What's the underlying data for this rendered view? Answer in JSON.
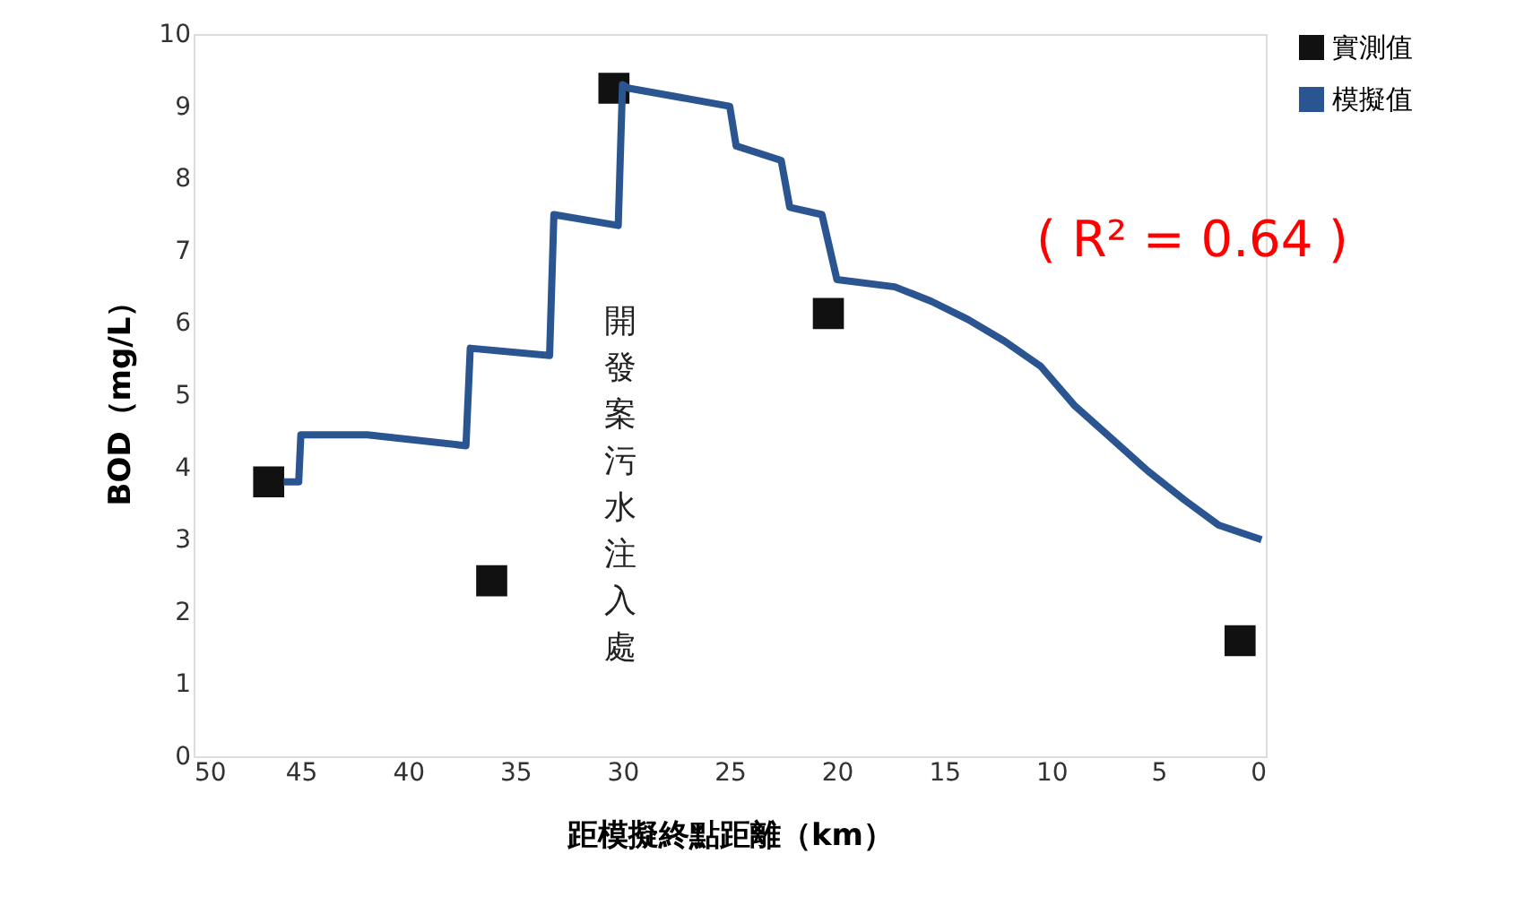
{
  "chart_data": {
    "type": "line",
    "xlabel": "距模擬終點距離（km）",
    "ylabel": "BOD（mg/L）",
    "xlim": [
      50,
      0
    ],
    "xticks": [
      50,
      45,
      40,
      35,
      30,
      25,
      20,
      15,
      10,
      5,
      0
    ],
    "ylim": [
      0,
      10
    ],
    "yticks": [
      0,
      1,
      2,
      3,
      4,
      5,
      6,
      7,
      8,
      9,
      10
    ],
    "grid": false,
    "legend": "right",
    "series": [
      {
        "name": "實測值",
        "type": "scatter",
        "marker": "square",
        "color": "#111111",
        "x": [
          46.5,
          36.1,
          30.4,
          20.4,
          1.2
        ],
        "values": [
          3.8,
          2.43,
          9.25,
          6.13,
          1.6
        ]
      },
      {
        "name": "模擬值",
        "marker": "none",
        "color": "#2a5590",
        "x": [
          45.8,
          45.1,
          45.0,
          41.9,
          37.3,
          37.1,
          33.4,
          33.2,
          30.2,
          30.0,
          29.7,
          25.0,
          24.7,
          22.6,
          22.2,
          20.7,
          20.0,
          17.3,
          15.6,
          13.9,
          12.2,
          10.5,
          8.9,
          7.2,
          5.5,
          3.8,
          2.2,
          0.2
        ],
        "values": [
          3.8,
          3.8,
          4.45,
          4.45,
          4.3,
          5.65,
          5.55,
          7.5,
          7.35,
          9.3,
          9.25,
          9.0,
          8.45,
          8.25,
          7.6,
          7.5,
          6.6,
          6.5,
          6.3,
          6.05,
          5.75,
          5.4,
          4.85,
          4.4,
          3.95,
          3.55,
          3.2,
          3.0
        ]
      }
    ],
    "annotations": [
      "開發案污水注入處",
      "( R² = 0.64 )"
    ]
  }
}
